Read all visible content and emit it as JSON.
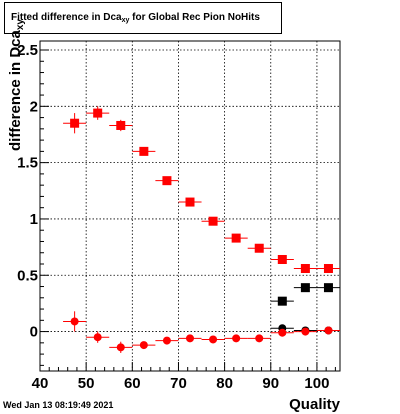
{
  "title": {
    "prefix": "Fitted difference in Dca",
    "sub": "xy",
    "suffix": " for Global Rec Pion NoHits"
  },
  "ylabel": {
    "prefix": "difference in Dca",
    "sub": "xy"
  },
  "xlabel": "Quality",
  "datestamp": "Wed Jan 13 08:19:49 2021",
  "chart_data": {
    "type": "scatter",
    "xlim": [
      40,
      105
    ],
    "ylim": [
      -0.35,
      2.58
    ],
    "xticks": [
      40,
      50,
      60,
      70,
      80,
      90,
      100
    ],
    "xtick_labels": [
      "40",
      "50",
      "60",
      "70",
      "80",
      "90",
      "100"
    ],
    "yticks": [
      0,
      0.5,
      1,
      1.5,
      2,
      2.5
    ],
    "ytick_labels": [
      "0",
      "0.5",
      "1",
      "1.5",
      "2",
      "2.5"
    ],
    "grid": true,
    "series": [
      {
        "marker": "square",
        "color": "#ff0000",
        "x": [
          47.5,
          52.5,
          57.5,
          62.5,
          67.5,
          72.5,
          77.5,
          82.5,
          87.5,
          92.5,
          97.5,
          102.5
        ],
        "y": [
          1.85,
          1.94,
          1.83,
          1.6,
          1.34,
          1.15,
          0.98,
          0.83,
          0.74,
          0.64,
          0.56,
          0.56
        ],
        "yerr": [
          0.09,
          0.06,
          0.05,
          0.03,
          0.03,
          0.02,
          0.02,
          0.02,
          0.02,
          0.02,
          0.02,
          0.02
        ]
      },
      {
        "marker": "square",
        "color": "#000000",
        "x": [
          92.5,
          97.5,
          102.5
        ],
        "y": [
          0.27,
          0.39,
          0.39
        ],
        "yerr": [
          0.01,
          0.01,
          0.01
        ]
      },
      {
        "marker": "circle",
        "color": "#000000",
        "x": [
          92.5,
          97.5,
          102.5
        ],
        "y": [
          0.03,
          0.01,
          0.01
        ],
        "yerr": [
          0.01,
          0.01,
          0.01
        ]
      },
      {
        "marker": "circle",
        "color": "#ff0000",
        "x": [
          47.5,
          52.5,
          57.5,
          62.5,
          67.5,
          72.5,
          77.5,
          82.5,
          87.5,
          92.5,
          97.5,
          102.5
        ],
        "y": [
          0.09,
          -0.05,
          -0.14,
          -0.12,
          -0.08,
          -0.06,
          -0.07,
          -0.06,
          -0.06,
          -0.01,
          0.0,
          0.01
        ],
        "yerr": [
          0.09,
          0.05,
          0.05,
          0.03,
          0.02,
          0.02,
          0.02,
          0.02,
          0.02,
          0.02,
          0.02,
          0.02
        ]
      }
    ]
  }
}
